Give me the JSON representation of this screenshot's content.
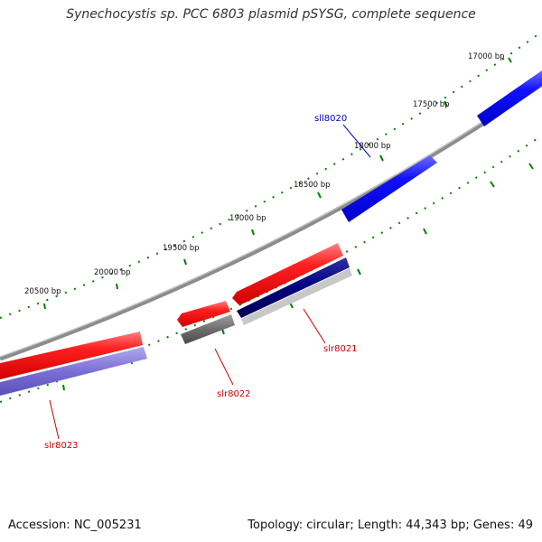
{
  "title": "Synechocystis sp. PCC 6803 plasmid pSYSG, complete sequence",
  "footer": {
    "accession": "Accession: NC_005231",
    "summary": "Topology: circular; Length: 44,343 bp; Genes: 49"
  },
  "map": {
    "topology": "circular",
    "length_bp": 44343,
    "gene_count": 49,
    "ticks": [
      {
        "label": "17000 bp"
      },
      {
        "label": "17500 bp"
      },
      {
        "label": "18000 bp"
      },
      {
        "label": "18500 bp"
      },
      {
        "label": "19000 bp"
      },
      {
        "label": "19500 bp"
      },
      {
        "label": "20000 bp"
      },
      {
        "label": "20500 bp"
      }
    ],
    "genes": [
      {
        "name": "sll8020",
        "strand": "minus",
        "color": "#0000ee"
      },
      {
        "name": "slr8021",
        "strand": "plus",
        "color": "#cc0000"
      },
      {
        "name": "slr8022",
        "strand": "plus",
        "color": "#cc0000"
      },
      {
        "name": "slr8023",
        "strand": "plus",
        "color": "#cc0000"
      }
    ],
    "colors": {
      "backbone": "#8c8c8c",
      "cds_forward": "#ff1a1a",
      "cds_reverse": "#1a1aff",
      "category_track_dark": "#000080",
      "category_track_gray": "#666666",
      "category_track_purple": "#7a6fd6",
      "tick": "#008000"
    }
  }
}
